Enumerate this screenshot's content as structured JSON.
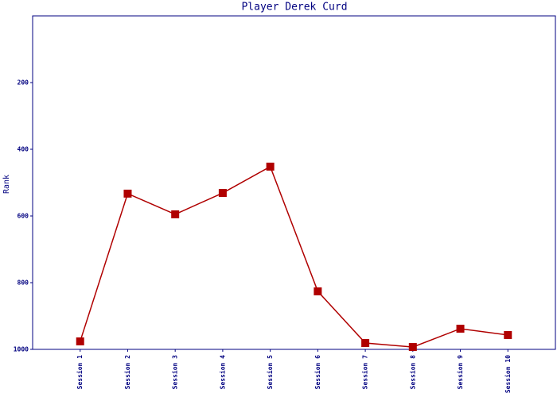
{
  "chart_data": {
    "type": "line",
    "title": "Player Derek Curd",
    "y_label": "Rank",
    "categories": [
      "Session 1",
      "Session 2",
      "Session 3",
      "Session 4",
      "Session 5",
      "Session 6",
      "Session 7",
      "Session 8",
      "Session 9",
      "Session 10"
    ],
    "series": [
      {
        "name": "Rank",
        "color": "#b00000",
        "values": [
          976,
          533,
          595,
          531,
          452,
          826,
          981,
          993,
          938,
          957
        ]
      }
    ],
    "ylim": [
      1000,
      0
    ],
    "yticks": [
      200,
      400,
      600,
      800,
      1000
    ],
    "grid": false
  }
}
